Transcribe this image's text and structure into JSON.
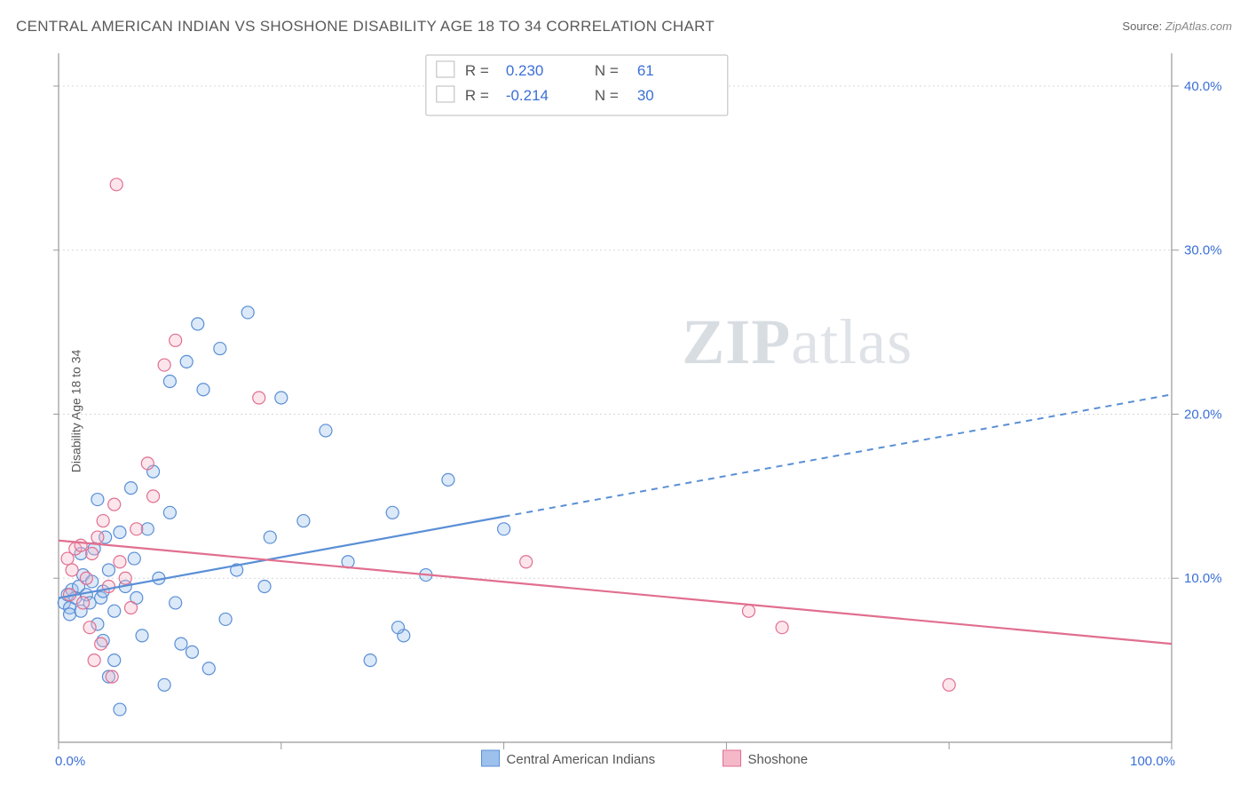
{
  "title": "CENTRAL AMERICAN INDIAN VS SHOSHONE DISABILITY AGE 18 TO 34 CORRELATION CHART",
  "source_label": "Source:",
  "source_value": "ZipAtlas.com",
  "ylabel": "Disability Age 18 to 34",
  "watermark_a": "ZIP",
  "watermark_b": "atlas",
  "chart": {
    "type": "scatter",
    "xlim": [
      0,
      100
    ],
    "ylim": [
      0,
      42
    ],
    "x_ticks": [
      0,
      20,
      40,
      60,
      80,
      100
    ],
    "x_tick_labels": [
      "0.0%",
      "",
      "",
      "",
      "",
      "100.0%"
    ],
    "y_ticks": [
      10,
      20,
      30,
      40
    ],
    "y_tick_labels": [
      "10.0%",
      "20.0%",
      "30.0%",
      "40.0%"
    ],
    "grid_color": "#d7d7d7",
    "axis_color": "#999999",
    "background_color": "#ffffff",
    "marker_radius": 7,
    "series": [
      {
        "name": "Central American Indians",
        "color_stroke": "#5a8fd6",
        "color_fill": "#9cc1ec",
        "R": "0.230",
        "N": "61",
        "regression": {
          "x1": 0,
          "y1": 8.8,
          "x2": 100,
          "y2": 21.2,
          "solid_until_x": 40
        },
        "points": [
          [
            0.5,
            8.5
          ],
          [
            0.8,
            9.0
          ],
          [
            1.0,
            8.2
          ],
          [
            1.2,
            9.3
          ],
          [
            1.0,
            7.8
          ],
          [
            1.5,
            8.8
          ],
          [
            1.8,
            9.5
          ],
          [
            2.0,
            8.0
          ],
          [
            2.2,
            10.2
          ],
          [
            2.5,
            9.0
          ],
          [
            2.0,
            11.5
          ],
          [
            2.8,
            8.5
          ],
          [
            3.0,
            9.8
          ],
          [
            3.2,
            11.8
          ],
          [
            3.5,
            7.2
          ],
          [
            3.8,
            8.8
          ],
          [
            3.5,
            14.8
          ],
          [
            4.0,
            9.2
          ],
          [
            4.5,
            10.5
          ],
          [
            4.0,
            6.2
          ],
          [
            5.0,
            8.0
          ],
          [
            5.5,
            12.8
          ],
          [
            5.0,
            5.0
          ],
          [
            6.0,
            9.5
          ],
          [
            6.5,
            15.5
          ],
          [
            7.0,
            8.8
          ],
          [
            7.5,
            6.5
          ],
          [
            5.5,
            2.0
          ],
          [
            8.0,
            13.0
          ],
          [
            4.5,
            4.0
          ],
          [
            9.0,
            10.0
          ],
          [
            8.5,
            16.5
          ],
          [
            10.0,
            14.0
          ],
          [
            10.5,
            8.5
          ],
          [
            11.0,
            6.0
          ],
          [
            12.0,
            5.5
          ],
          [
            10.0,
            22.0
          ],
          [
            12.5,
            25.5
          ],
          [
            13.0,
            21.5
          ],
          [
            14.5,
            24.0
          ],
          [
            11.5,
            23.2
          ],
          [
            15.0,
            7.5
          ],
          [
            17.0,
            26.2
          ],
          [
            13.5,
            4.5
          ],
          [
            19.0,
            12.5
          ],
          [
            22.0,
            13.5
          ],
          [
            20.0,
            21.0
          ],
          [
            18.5,
            9.5
          ],
          [
            24.0,
            19.0
          ],
          [
            26.0,
            11.0
          ],
          [
            28.0,
            5.0
          ],
          [
            30.0,
            14.0
          ],
          [
            31.0,
            6.5
          ],
          [
            33.0,
            10.2
          ],
          [
            35.0,
            16.0
          ],
          [
            40.0,
            13.0
          ],
          [
            30.5,
            7.0
          ],
          [
            16.0,
            10.5
          ],
          [
            9.5,
            3.5
          ],
          [
            6.8,
            11.2
          ],
          [
            4.2,
            12.5
          ]
        ]
      },
      {
        "name": "Shoshone",
        "color_stroke": "#e16f8f",
        "color_fill": "#f5b8c9",
        "R": "-0.214",
        "N": "30",
        "regression": {
          "x1": 0,
          "y1": 12.3,
          "x2": 100,
          "y2": 6.0,
          "solid_until_x": 100
        },
        "points": [
          [
            0.8,
            11.2
          ],
          [
            1.2,
            10.5
          ],
          [
            1.5,
            11.8
          ],
          [
            1.0,
            9.0
          ],
          [
            2.0,
            12.0
          ],
          [
            2.5,
            10.0
          ],
          [
            2.2,
            8.5
          ],
          [
            3.0,
            11.5
          ],
          [
            3.5,
            12.5
          ],
          [
            2.8,
            7.0
          ],
          [
            4.0,
            13.5
          ],
          [
            4.5,
            9.5
          ],
          [
            5.0,
            14.5
          ],
          [
            5.5,
            11.0
          ],
          [
            3.2,
            5.0
          ],
          [
            6.0,
            10.0
          ],
          [
            7.0,
            13.0
          ],
          [
            8.0,
            17.0
          ],
          [
            8.5,
            15.0
          ],
          [
            5.2,
            34.0
          ],
          [
            9.5,
            23.0
          ],
          [
            10.5,
            24.5
          ],
          [
            4.8,
            4.0
          ],
          [
            18.0,
            21.0
          ],
          [
            42.0,
            11.0
          ],
          [
            62.0,
            8.0
          ],
          [
            65.0,
            7.0
          ],
          [
            80.0,
            3.5
          ],
          [
            3.8,
            6.0
          ],
          [
            6.5,
            8.2
          ]
        ]
      }
    ]
  },
  "legend_bottom": [
    {
      "label": "Central American Indians",
      "fill": "#9cc1ec",
      "stroke": "#5a8fd6"
    },
    {
      "label": "Shoshone",
      "fill": "#f5b8c9",
      "stroke": "#e16f8f"
    }
  ]
}
